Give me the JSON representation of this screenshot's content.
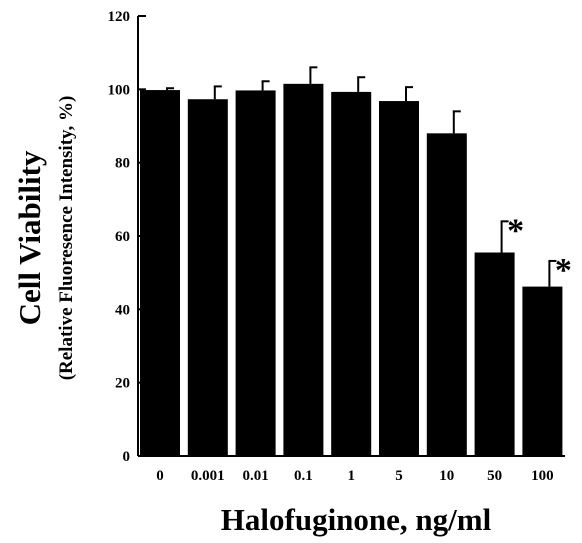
{
  "chart_data": {
    "type": "bar",
    "categories": [
      "0",
      "0.001",
      "0.01",
      "0.1",
      "1",
      "5",
      "10",
      "50",
      "100"
    ],
    "values": [
      99.8,
      97.3,
      99.7,
      101.5,
      99.3,
      96.8,
      88.0,
      55.5,
      46.2
    ],
    "errors": [
      0.5,
      3.5,
      2.5,
      4.5,
      4.0,
      3.8,
      6.0,
      8.5,
      7.0
    ],
    "significance": [
      "",
      "",
      "",
      "",
      "",
      "",
      "",
      "*",
      "*"
    ],
    "xlabel": "Halofuginone, ng/ml",
    "ylabel": "Cell Viability",
    "ylabel_sub": "(Relative Fluoresence Intensity, %)",
    "ylim": [
      0,
      120
    ],
    "yticks": [
      0,
      20,
      40,
      60,
      80,
      100,
      120
    ],
    "bar_color": "#000000",
    "grid": false
  }
}
